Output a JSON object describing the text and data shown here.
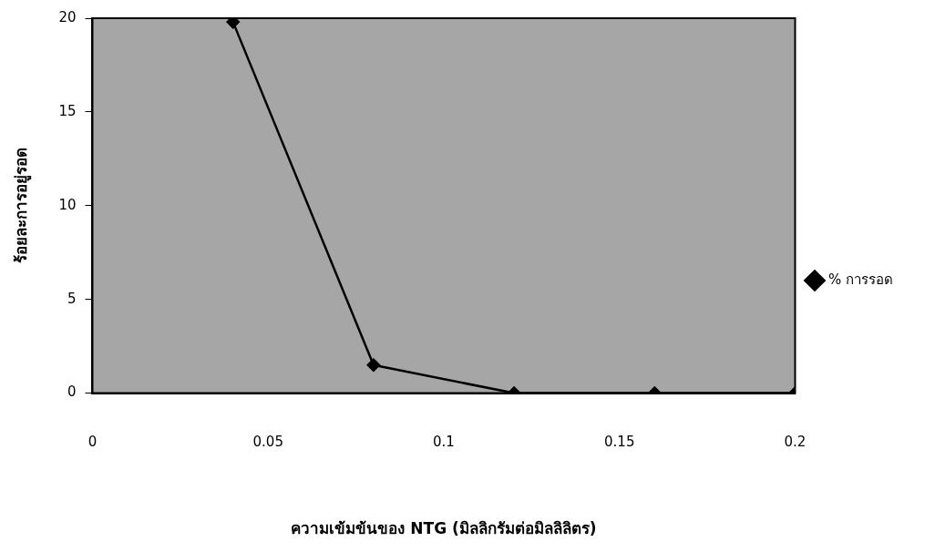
{
  "chart_data": {
    "type": "line",
    "xlabel": "ความเข้มข้นของ NTG (มิลลิกรัมต่อมิลลิลิตร)",
    "ylabel": "ร้อยละการอยู่รอด",
    "x": [
      0.04,
      0.08,
      0.12,
      0.16,
      0.2
    ],
    "series": [
      {
        "name": "% การรอด",
        "color": "#000000",
        "values": [
          19.8,
          1.5,
          0,
          0,
          0
        ]
      }
    ],
    "xlim": [
      0,
      0.2
    ],
    "xticks": [
      0,
      0.05,
      0.1,
      0.15,
      0.2
    ],
    "ylim": [
      0,
      20
    ],
    "yticks": [
      0,
      5,
      10,
      15,
      20
    ],
    "grid": false,
    "legend": "right",
    "marker": "diamond",
    "line_style": "solid"
  }
}
